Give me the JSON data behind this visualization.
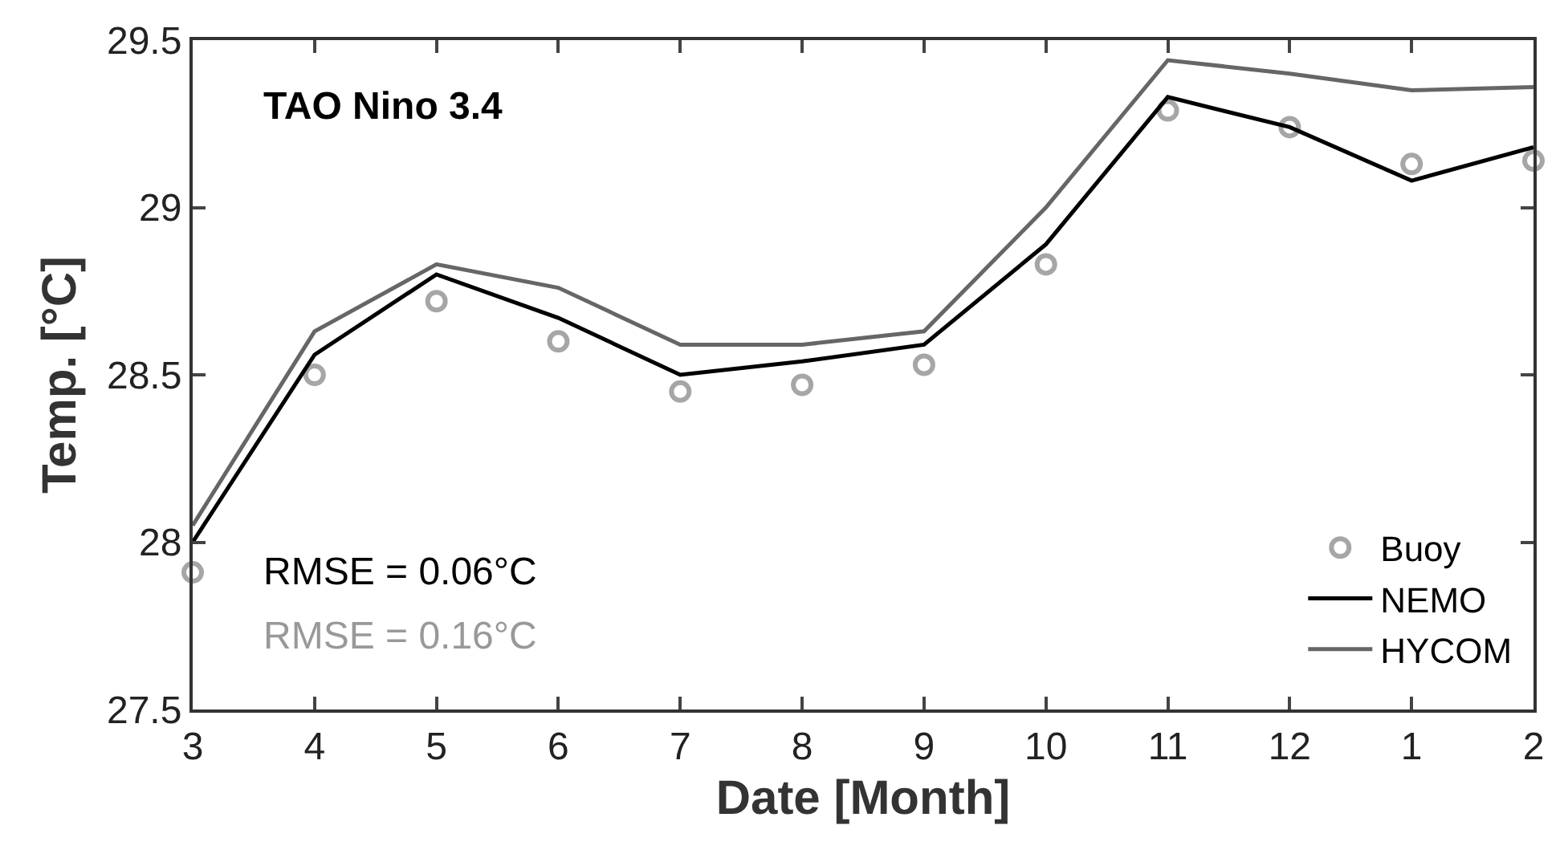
{
  "chart_data": {
    "type": "line",
    "title": "TAO Nino 3.4",
    "xlabel": "Date [Month]",
    "ylabel": "Temp. [°C]",
    "categories": [
      "3",
      "4",
      "5",
      "6",
      "7",
      "8",
      "9",
      "10",
      "11",
      "12",
      "1",
      "2"
    ],
    "series": [
      {
        "name": "Buoy",
        "type": "scatter",
        "marker": "circle",
        "color": "#a6a6a6",
        "values": [
          27.91,
          28.5,
          28.72,
          28.6,
          28.45,
          28.47,
          28.53,
          28.83,
          29.29,
          29.24,
          29.13,
          29.14
        ]
      },
      {
        "name": "NEMO",
        "color": "#000000",
        "values": [
          28.0,
          28.56,
          28.8,
          28.67,
          28.5,
          28.54,
          28.59,
          28.89,
          29.33,
          29.24,
          29.08,
          29.18
        ]
      },
      {
        "name": "HYCOM",
        "color": "#666666",
        "values": [
          28.05,
          28.63,
          28.83,
          28.76,
          28.59,
          28.59,
          28.63,
          29.0,
          29.44,
          29.4,
          29.35,
          29.36
        ]
      }
    ],
    "annotations": [
      "RMSE = 0.06°C",
      "RMSE = 0.16°C"
    ],
    "ylim": [
      27.5,
      29.5
    ],
    "yticks": [
      27.5,
      28,
      28.5,
      29,
      29.5
    ],
    "legend": "bottom right"
  }
}
